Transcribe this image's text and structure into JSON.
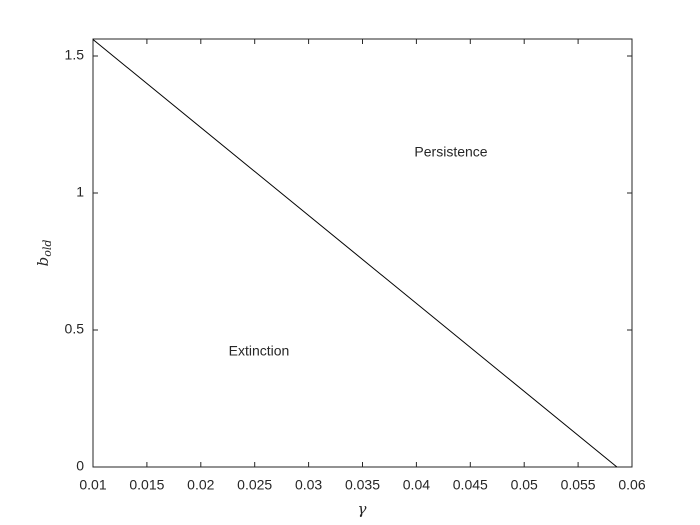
{
  "chart_data": {
    "type": "line",
    "xlabel": "γ",
    "ylabel": {
      "text": "b",
      "subscript": "old"
    },
    "annotations": [
      "Persistence",
      "Extinction"
    ],
    "x": [
      0.01,
      0.0586
    ],
    "series": [
      {
        "color": "#000000",
        "values": [
          1.56,
          0
        ]
      }
    ],
    "xlim": [
      0.01,
      0.06
    ],
    "ylim": [
      0,
      1.562
    ],
    "xticks": [
      0.01,
      0.015,
      0.02,
      0.025,
      0.03,
      0.035,
      0.04,
      0.045,
      0.05,
      0.055,
      0.06
    ],
    "yticks": [
      0,
      0.5,
      1,
      1.5
    ],
    "grid": false
  }
}
